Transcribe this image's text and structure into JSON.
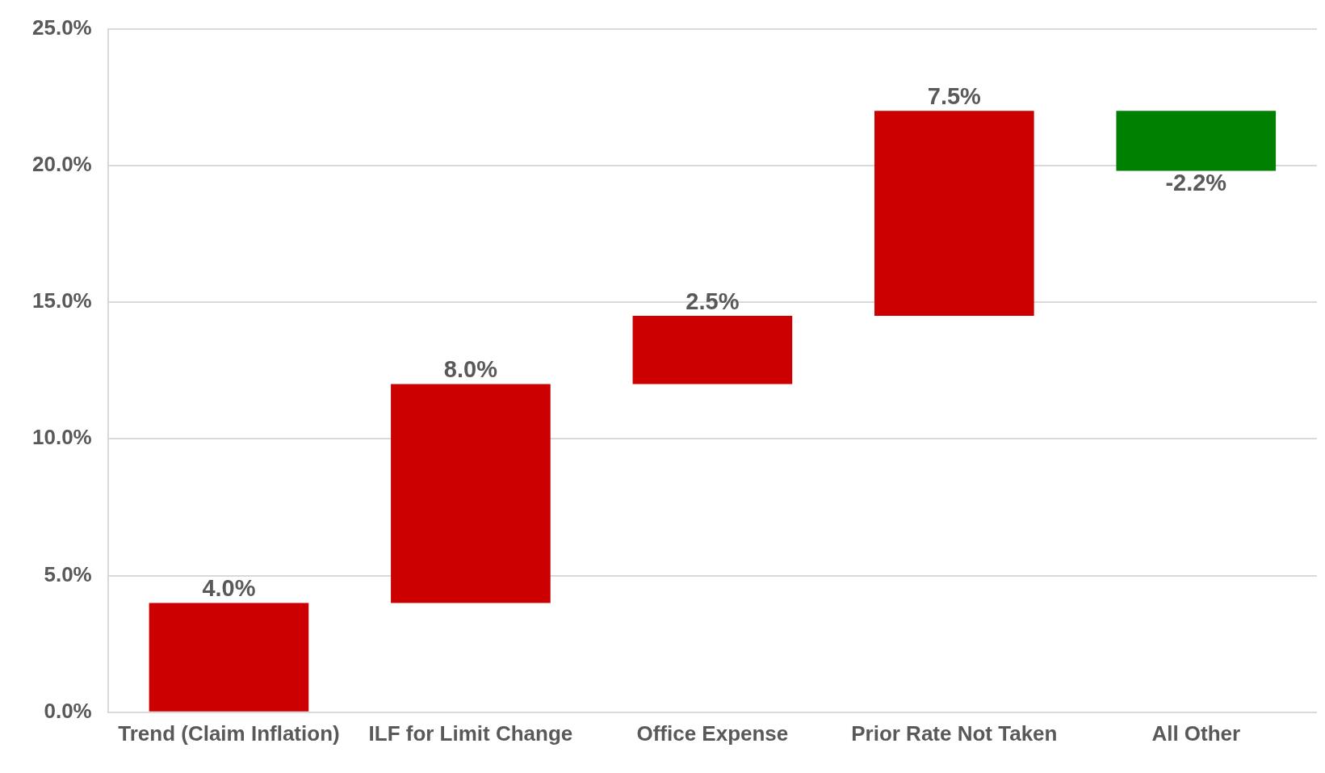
{
  "chart_data": {
    "type": "bar",
    "categories": [
      "Trend (Claim Inflation)",
      "ILF for Limit Change",
      "Office Expense",
      "Prior Rate Not Taken",
      "All Other"
    ],
    "values": [
      4.0,
      8.0,
      2.5,
      7.5,
      -2.2
    ],
    "base": [
      0,
      4.0,
      12.0,
      14.5,
      22.0
    ],
    "colors": [
      "#cc0000",
      "#cc0000",
      "#cc0000",
      "#cc0000",
      "#008000"
    ],
    "value_labels": [
      "4.0%",
      "8.0%",
      "2.5%",
      "7.5%",
      "-2.2%"
    ],
    "ylim": [
      0,
      25
    ],
    "yticks": [
      {
        "value": 0,
        "label": "0.0%"
      },
      {
        "value": 5,
        "label": "5.0%"
      },
      {
        "value": 10,
        "label": "10.0%"
      },
      {
        "value": 15,
        "label": "15.0%"
      },
      {
        "value": 20,
        "label": "20.0%"
      },
      {
        "value": 25,
        "label": "25.0%"
      }
    ],
    "grid": "y",
    "legend": false
  }
}
